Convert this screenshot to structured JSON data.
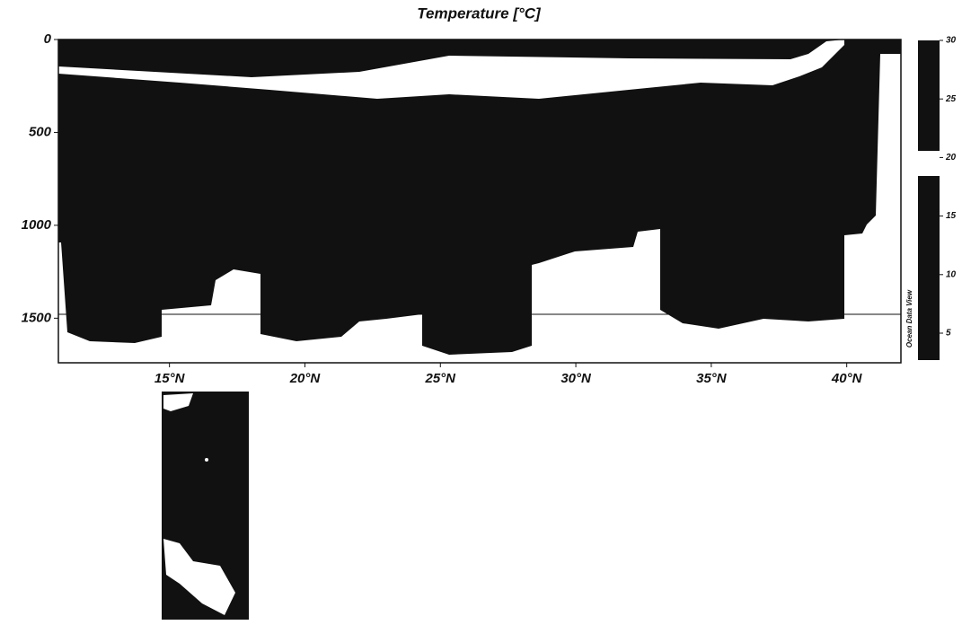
{
  "chart_data": {
    "type": "section",
    "title": "Temperature [°C]",
    "xlim": [
      10.9,
      42
    ],
    "xticks": [
      {
        "value": 15,
        "label": "15°N"
      },
      {
        "value": 20,
        "label": "20°N"
      },
      {
        "value": 25,
        "label": "25°N"
      },
      {
        "value": 30,
        "label": "30°N"
      },
      {
        "value": 35,
        "label": "35°N"
      },
      {
        "value": 40,
        "label": "40°N"
      }
    ],
    "ylim": [
      0,
      1740
    ],
    "yticks": [
      0,
      500,
      1000,
      1500
    ],
    "y_inverted": true,
    "colorbar": {
      "lim": [
        2.7,
        30
      ],
      "ticks": [
        5,
        10,
        15,
        20,
        25,
        30
      ]
    },
    "watermark": "Ocean Data View",
    "color": "#111111"
  }
}
